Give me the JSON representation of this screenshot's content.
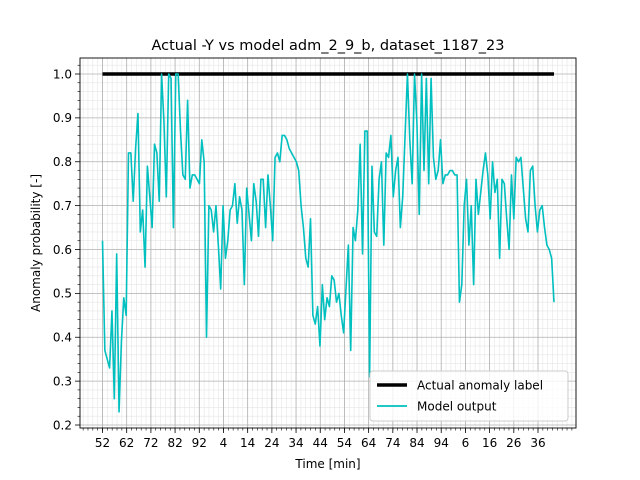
{
  "chart_data": {
    "type": "line",
    "title": "Actual -Y vs model adm_2_9_b, dataset_1187_23",
    "xlabel": "Time [min]",
    "ylabel": "Anomaly probability [-]",
    "ylim": [
      0.2,
      1.0
    ],
    "yticks": [
      "0.2",
      "0.3",
      "0.4",
      "0.5",
      "0.6",
      "0.7",
      "0.8",
      "0.9",
      "1.0"
    ],
    "xtick_labels": [
      "52",
      "62",
      "72",
      "82",
      "92",
      "4",
      "14",
      "24",
      "34",
      "44",
      "54",
      "64",
      "74",
      "84",
      "94",
      "6",
      "16",
      "26",
      "36"
    ],
    "grid": true,
    "legend_position": "lower-right",
    "series": [
      {
        "name": "Actual anomaly label",
        "color": "#000000",
        "values": [
          1.0,
          1.0
        ]
      },
      {
        "name": "Model output",
        "color": "#00bfbf",
        "values": [
          0.62,
          0.37,
          0.35,
          0.33,
          0.46,
          0.26,
          0.59,
          0.23,
          0.39,
          0.49,
          0.45,
          0.82,
          0.82,
          0.71,
          0.83,
          0.91,
          0.64,
          0.69,
          0.56,
          0.79,
          0.72,
          0.65,
          0.84,
          0.82,
          0.71,
          1.0,
          0.89,
          0.72,
          1.0,
          0.99,
          0.65,
          1.0,
          1.0,
          0.87,
          0.77,
          0.76,
          0.94,
          0.74,
          0.77,
          0.77,
          0.76,
          0.75,
          0.85,
          0.8,
          0.4,
          0.7,
          0.69,
          0.64,
          0.7,
          0.61,
          0.51,
          0.7,
          0.58,
          0.62,
          0.69,
          0.7,
          0.75,
          0.66,
          0.72,
          0.69,
          0.52,
          0.74,
          0.68,
          0.62,
          0.75,
          0.71,
          0.63,
          0.76,
          0.76,
          0.65,
          0.77,
          0.7,
          0.62,
          0.81,
          0.82,
          0.8,
          0.86,
          0.86,
          0.85,
          0.83,
          0.82,
          0.81,
          0.8,
          0.78,
          0.7,
          0.65,
          0.58,
          0.56,
          0.67,
          0.45,
          0.43,
          0.47,
          0.38,
          0.52,
          0.44,
          0.49,
          0.47,
          0.54,
          0.53,
          0.48,
          0.5,
          0.45,
          0.41,
          0.51,
          0.61,
          0.37,
          0.65,
          0.62,
          0.69,
          0.84,
          0.59,
          0.87,
          0.87,
          0.31,
          0.79,
          0.64,
          0.63,
          0.76,
          0.8,
          0.61,
          0.82,
          0.81,
          0.86,
          0.72,
          0.78,
          0.81,
          0.65,
          0.72,
          0.86,
          1.0,
          0.85,
          0.75,
          1.0,
          0.89,
          0.68,
          1.0,
          0.78,
          0.99,
          0.75,
          0.99,
          0.81,
          0.76,
          0.78,
          0.85,
          0.75,
          0.77,
          0.77,
          0.78,
          0.78,
          0.77,
          0.77,
          0.48,
          0.52,
          0.7,
          0.76,
          0.61,
          0.7,
          0.52,
          0.76,
          0.68,
          0.73,
          0.78,
          0.82,
          0.77,
          0.67,
          0.8,
          0.73,
          0.76,
          0.58,
          0.76,
          0.75,
          0.67,
          0.6,
          0.77,
          0.67,
          0.81,
          0.8,
          0.81,
          0.74,
          0.67,
          0.64,
          0.78,
          0.79,
          0.7,
          0.64,
          0.69,
          0.7,
          0.65,
          0.61,
          0.6,
          0.58,
          0.48
        ]
      }
    ]
  }
}
